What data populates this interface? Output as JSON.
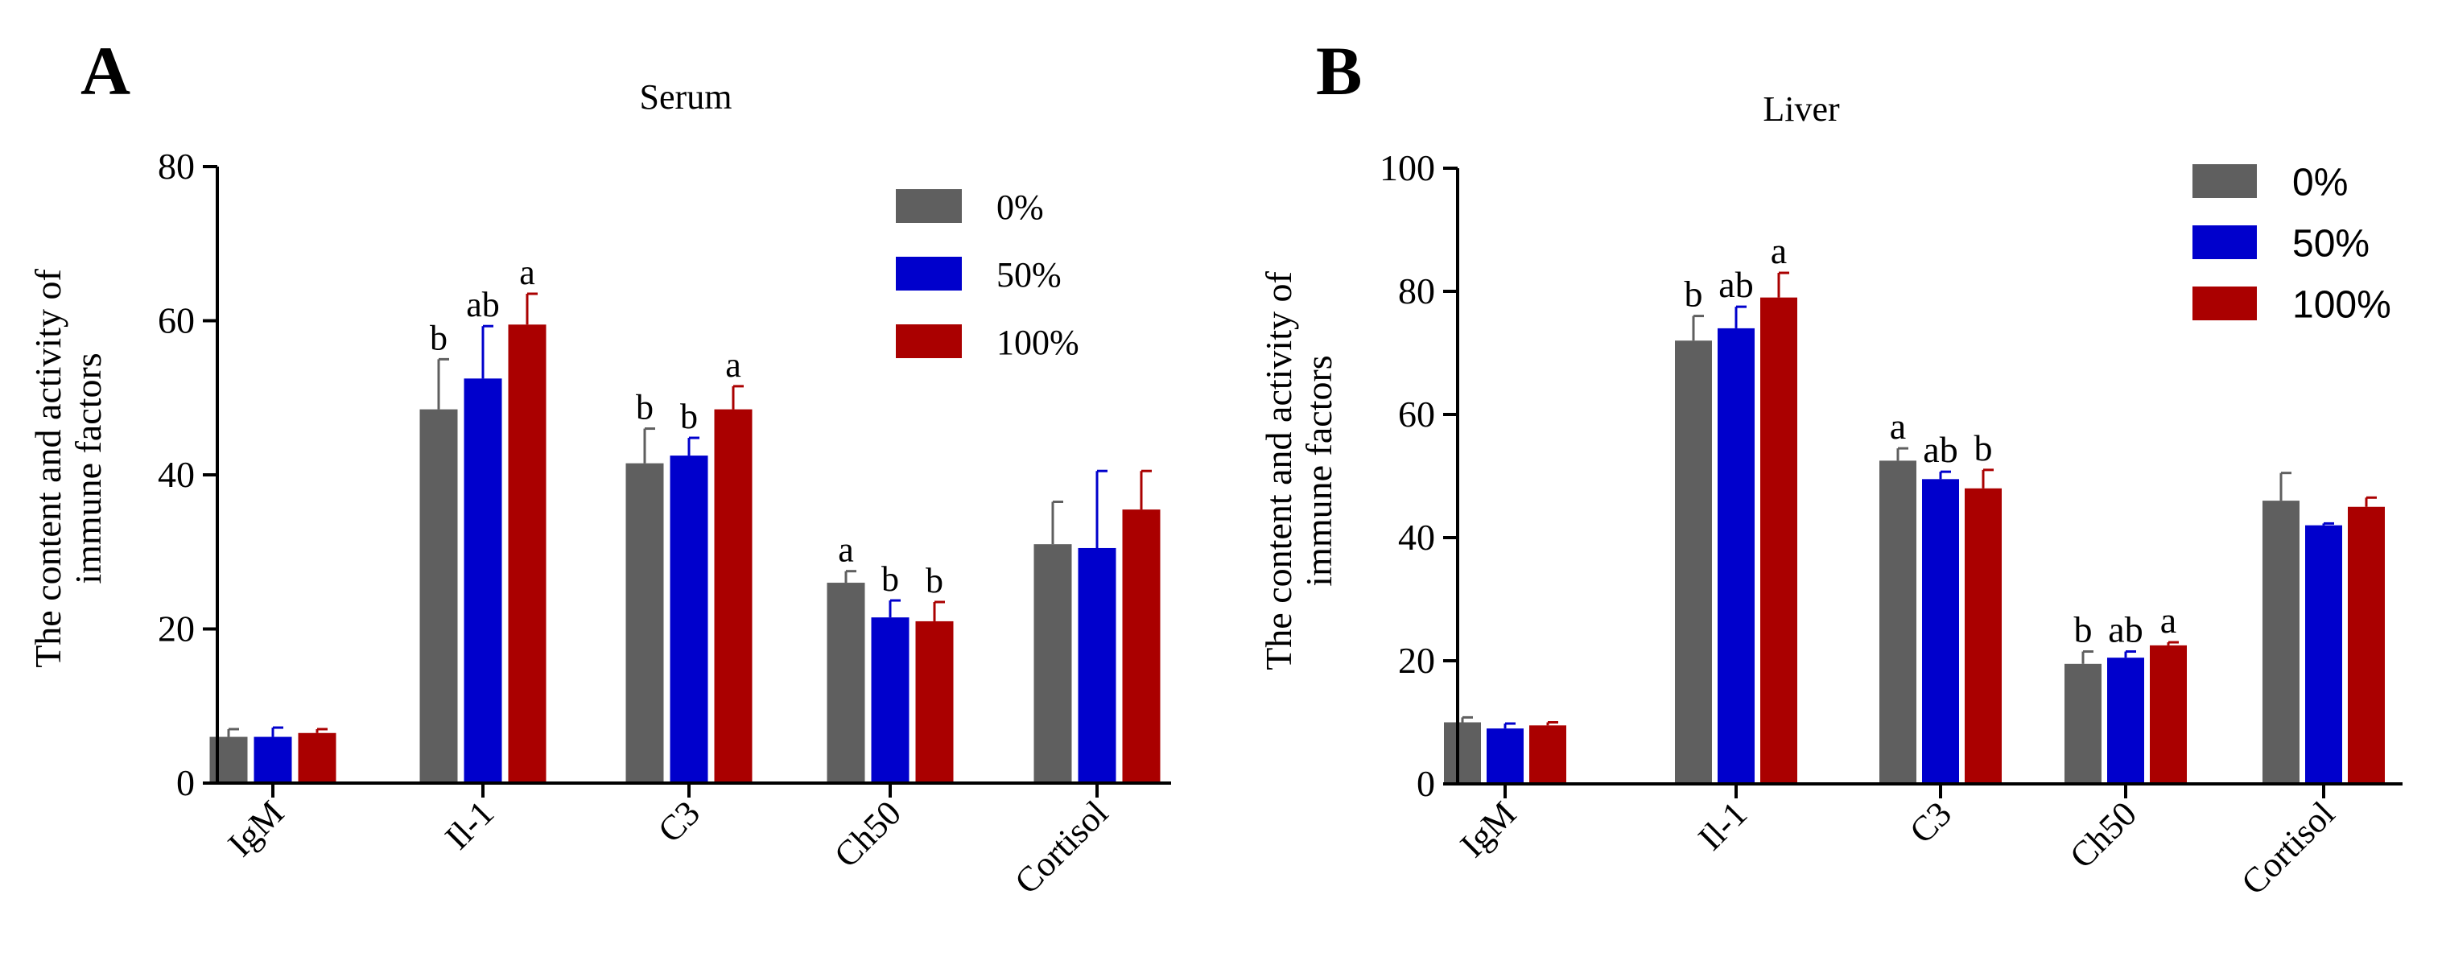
{
  "colors": {
    "series_0": "#5f5f5f",
    "series_1": "#0000cc",
    "series_2": "#aa0000",
    "axis": "#000000",
    "error_bar_0": "#5f5f5f",
    "error_bar_1": "#0000cc",
    "error_bar_2": "#aa0000"
  },
  "chart_data": [
    {
      "panel_letter": "A",
      "type": "bar",
      "title": "Serum",
      "ylabel_lines": [
        "The content and activity of",
        "immune factors"
      ],
      "xlabel": "",
      "categories": [
        "IgM",
        "Il-1",
        "C3",
        "Ch50",
        "Cortisol"
      ],
      "ylim": [
        0,
        80
      ],
      "yticks": [
        0,
        20,
        40,
        60,
        80
      ],
      "legend_position": "top-right",
      "series": [
        {
          "name": "0%",
          "values": [
            6,
            48.5,
            41.5,
            26,
            31
          ],
          "errors": [
            1,
            6.5,
            4.5,
            1.5,
            5.5
          ],
          "letters": [
            "",
            "b",
            "b",
            "a",
            ""
          ]
        },
        {
          "name": "50%",
          "values": [
            6,
            52.5,
            42.5,
            21.5,
            30.5
          ],
          "errors": [
            1.2,
            6.8,
            2.3,
            2.2,
            10
          ],
          "letters": [
            "",
            "ab",
            "b",
            "b",
            ""
          ]
        },
        {
          "name": "100%",
          "values": [
            6.5,
            59.5,
            48.5,
            21,
            35.5
          ],
          "errors": [
            0.5,
            4,
            3,
            2.5,
            5
          ],
          "letters": [
            "",
            "a",
            "a",
            "b",
            ""
          ]
        }
      ]
    },
    {
      "panel_letter": "B",
      "type": "bar",
      "title": "Liver",
      "ylabel_lines": [
        "The content and activity of",
        "immune factors"
      ],
      "xlabel": "",
      "categories": [
        "IgM",
        "Il-1",
        "C3",
        "Ch50",
        "Cortisol"
      ],
      "ylim": [
        0,
        100
      ],
      "yticks": [
        0,
        20,
        40,
        60,
        80,
        100
      ],
      "legend_position": "top-right",
      "series": [
        {
          "name": "0%",
          "values": [
            10,
            72,
            52.5,
            19.5,
            46
          ],
          "errors": [
            0.8,
            4,
            2,
            2,
            4.5
          ],
          "letters": [
            "",
            "b",
            "a",
            "b",
            ""
          ]
        },
        {
          "name": "50%",
          "values": [
            9,
            74,
            49.5,
            20.5,
            42
          ],
          "errors": [
            0.8,
            3.5,
            1.2,
            1,
            0.3
          ],
          "letters": [
            "",
            "ab",
            "ab",
            "ab",
            ""
          ]
        },
        {
          "name": "100%",
          "values": [
            9.5,
            79,
            48,
            22.5,
            45
          ],
          "errors": [
            0.5,
            4,
            3,
            0.5,
            1.5
          ],
          "letters": [
            "",
            "a",
            "b",
            "a",
            ""
          ]
        }
      ]
    }
  ]
}
